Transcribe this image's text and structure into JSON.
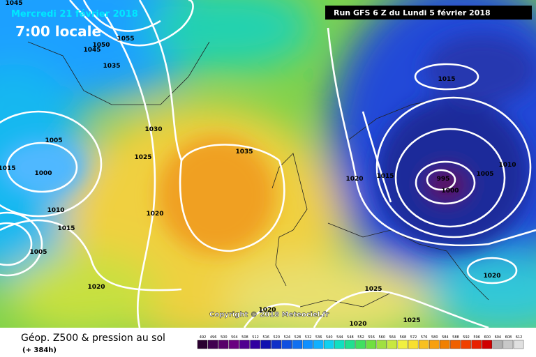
{
  "header": {
    "date": "Mercredi 21 février 2018",
    "time": "7:00 locale",
    "run": "Run GFS 6 Z du Lundi 5 février 2018"
  },
  "copyright": "Copyright © 2018 Meteociel.fr",
  "footer": {
    "title": "Géop. Z500 & pression au sol",
    "lead": "(+ 384h)"
  },
  "isobar_labels": [
    1045,
    1055,
    1050,
    1045,
    1035,
    1005,
    1000,
    1015,
    1010,
    1015,
    1030,
    1025,
    1020,
    1035,
    1020,
    1015,
    1015,
    995,
    1000,
    1005,
    1010,
    1020,
    1025,
    1020,
    1020,
    1025,
    1020,
    1005
  ],
  "scale_labels": [
    492,
    496,
    500,
    504,
    508,
    512,
    516,
    520,
    524,
    528,
    532,
    536,
    540,
    544,
    548,
    552,
    556,
    560,
    564,
    568,
    572,
    576,
    580,
    584,
    588,
    592,
    596,
    600,
    604,
    608,
    612
  ]
}
